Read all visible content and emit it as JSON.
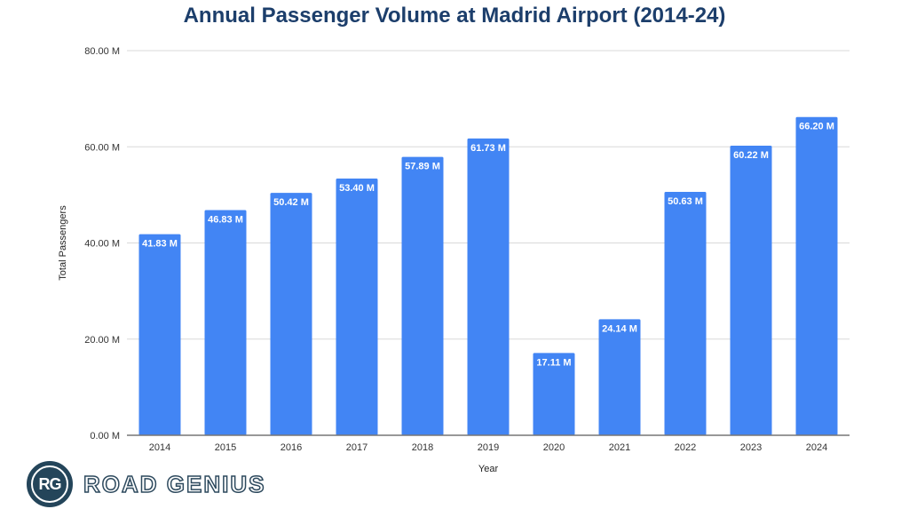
{
  "chart_data": {
    "type": "bar",
    "title": "Annual Passenger Volume at Madrid Airport (2014-24)",
    "xlabel": "Year",
    "ylabel": "Total Passengers",
    "categories": [
      "2014",
      "2015",
      "2016",
      "2017",
      "2018",
      "2019",
      "2020",
      "2021",
      "2022",
      "2023",
      "2024"
    ],
    "values": [
      41.83,
      46.83,
      50.42,
      53.4,
      57.89,
      61.73,
      17.11,
      24.14,
      50.63,
      60.22,
      66.2
    ],
    "data_labels": [
      "41.83 M",
      "46.83 M",
      "50.42 M",
      "53.40 M",
      "57.89 M",
      "61.73 M",
      "17.11 M",
      "24.14 M",
      "50.63 M",
      "60.22 M",
      "66.20 M"
    ],
    "unit": "M",
    "ylim": [
      0,
      80
    ],
    "yticks": [
      0,
      20,
      40,
      60,
      80
    ],
    "ytick_labels": [
      "0.00 M",
      "20.00 M",
      "40.00 M",
      "60.00 M",
      "80.00 M"
    ],
    "grid": true,
    "legend": "none",
    "bar_color": "#4285f4"
  },
  "branding": {
    "logo_initials": "RG",
    "logo_text": "ROAD GENIUS"
  }
}
